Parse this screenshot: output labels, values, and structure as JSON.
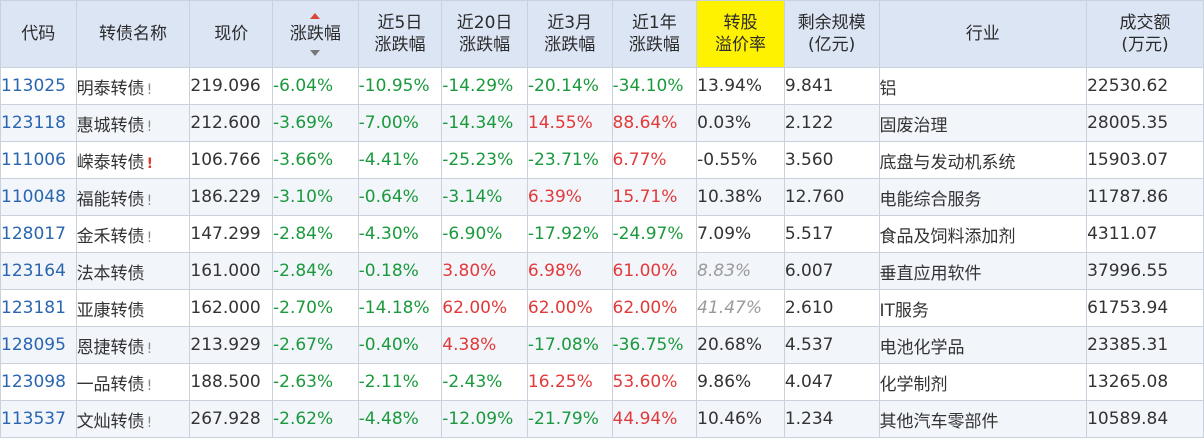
{
  "columns": [
    {
      "key": "code",
      "lines": [
        "代码"
      ]
    },
    {
      "key": "name",
      "lines": [
        "转债名称"
      ]
    },
    {
      "key": "price",
      "lines": [
        "现价"
      ]
    },
    {
      "key": "chg",
      "lines": [
        "涨跌幅"
      ],
      "sorted": true
    },
    {
      "key": "chg5",
      "lines": [
        "近5日",
        "涨跌幅"
      ]
    },
    {
      "key": "chg20",
      "lines": [
        "近20日",
        "涨跌幅"
      ]
    },
    {
      "key": "chg3m",
      "lines": [
        "近3月",
        "涨跌幅"
      ]
    },
    {
      "key": "chg1y",
      "lines": [
        "近1年",
        "涨跌幅"
      ]
    },
    {
      "key": "premium",
      "lines": [
        "转股",
        "溢价率"
      ],
      "highlight": true
    },
    {
      "key": "scale",
      "lines": [
        "剩余规模",
        "(亿元)"
      ]
    },
    {
      "key": "industry",
      "lines": [
        "行业"
      ]
    },
    {
      "key": "volume",
      "lines": [
        "成交额",
        "(万元)"
      ]
    }
  ],
  "colors": {
    "negative": "#1a9a3c",
    "positive": "#e23a3a",
    "code_link": "#2a66b0",
    "header_bg": "#dbe5f4",
    "highlight": "#fff200"
  },
  "rows": [
    {
      "code": "113025",
      "name": "明泰转债",
      "flag": "!",
      "flag_red": false,
      "price": "219.096",
      "chg": "-6.04%",
      "chg5": "-10.95%",
      "chg20": "-14.29%",
      "chg3m": "-20.14%",
      "chg1y": "-34.10%",
      "premium": "13.94%",
      "premium_gray": false,
      "scale": "9.841",
      "industry": "铝",
      "volume": "22530.62"
    },
    {
      "code": "123118",
      "name": "惠城转债",
      "flag": "!",
      "flag_red": false,
      "price": "212.600",
      "chg": "-3.69%",
      "chg5": "-7.00%",
      "chg20": "-14.34%",
      "chg3m": "14.55%",
      "chg1y": "88.64%",
      "premium": "0.03%",
      "premium_gray": false,
      "scale": "2.122",
      "industry": "固废治理",
      "volume": "28005.35"
    },
    {
      "code": "111006",
      "name": "嵘泰转债",
      "flag": "!",
      "flag_red": true,
      "price": "106.766",
      "chg": "-3.66%",
      "chg5": "-4.41%",
      "chg20": "-25.23%",
      "chg3m": "-23.71%",
      "chg1y": "6.77%",
      "premium": "-0.55%",
      "premium_gray": false,
      "scale": "3.560",
      "industry": "底盘与发动机系统",
      "volume": "15903.07"
    },
    {
      "code": "110048",
      "name": "福能转债",
      "flag": "!",
      "flag_red": false,
      "price": "186.229",
      "chg": "-3.10%",
      "chg5": "-0.64%",
      "chg20": "-3.14%",
      "chg3m": "6.39%",
      "chg1y": "15.71%",
      "premium": "10.38%",
      "premium_gray": false,
      "scale": "12.760",
      "industry": "电能综合服务",
      "volume": "11787.86"
    },
    {
      "code": "128017",
      "name": "金禾转债",
      "flag": "!",
      "flag_red": false,
      "price": "147.299",
      "chg": "-2.84%",
      "chg5": "-4.30%",
      "chg20": "-6.90%",
      "chg3m": "-17.92%",
      "chg1y": "-24.97%",
      "premium": "7.09%",
      "premium_gray": false,
      "scale": "5.517",
      "industry": "食品及饲料添加剂",
      "volume": "4311.07"
    },
    {
      "code": "123164",
      "name": "法本转债",
      "flag": "",
      "flag_red": false,
      "price": "161.000",
      "chg": "-2.84%",
      "chg5": "-0.18%",
      "chg20": "3.80%",
      "chg3m": "6.98%",
      "chg1y": "61.00%",
      "premium": "8.83%",
      "premium_gray": true,
      "scale": "6.007",
      "industry": "垂直应用软件",
      "volume": "37996.55"
    },
    {
      "code": "123181",
      "name": "亚康转债",
      "flag": "",
      "flag_red": false,
      "price": "162.000",
      "chg": "-2.70%",
      "chg5": "-14.18%",
      "chg20": "62.00%",
      "chg3m": "62.00%",
      "chg1y": "62.00%",
      "premium": "41.47%",
      "premium_gray": true,
      "scale": "2.610",
      "industry": "IT服务",
      "volume": "61753.94"
    },
    {
      "code": "128095",
      "name": "恩捷转债",
      "flag": "!",
      "flag_red": false,
      "price": "213.929",
      "chg": "-2.67%",
      "chg5": "-0.40%",
      "chg20": "4.38%",
      "chg3m": "-17.08%",
      "chg1y": "-36.75%",
      "premium": "20.68%",
      "premium_gray": false,
      "scale": "4.537",
      "industry": "电池化学品",
      "volume": "23385.31"
    },
    {
      "code": "123098",
      "name": "一品转债",
      "flag": "!",
      "flag_red": false,
      "price": "188.500",
      "chg": "-2.63%",
      "chg5": "-2.11%",
      "chg20": "-2.43%",
      "chg3m": "16.25%",
      "chg1y": "53.60%",
      "premium": "9.86%",
      "premium_gray": false,
      "scale": "4.047",
      "industry": "化学制剂",
      "volume": "13265.08"
    },
    {
      "code": "113537",
      "name": "文灿转债",
      "flag": "!",
      "flag_red": false,
      "price": "267.928",
      "chg": "-2.62%",
      "chg5": "-4.48%",
      "chg20": "-12.09%",
      "chg3m": "-21.79%",
      "chg1y": "44.94%",
      "premium": "10.46%",
      "premium_gray": false,
      "scale": "1.234",
      "industry": "其他汽车零部件",
      "volume": "10589.84"
    }
  ]
}
